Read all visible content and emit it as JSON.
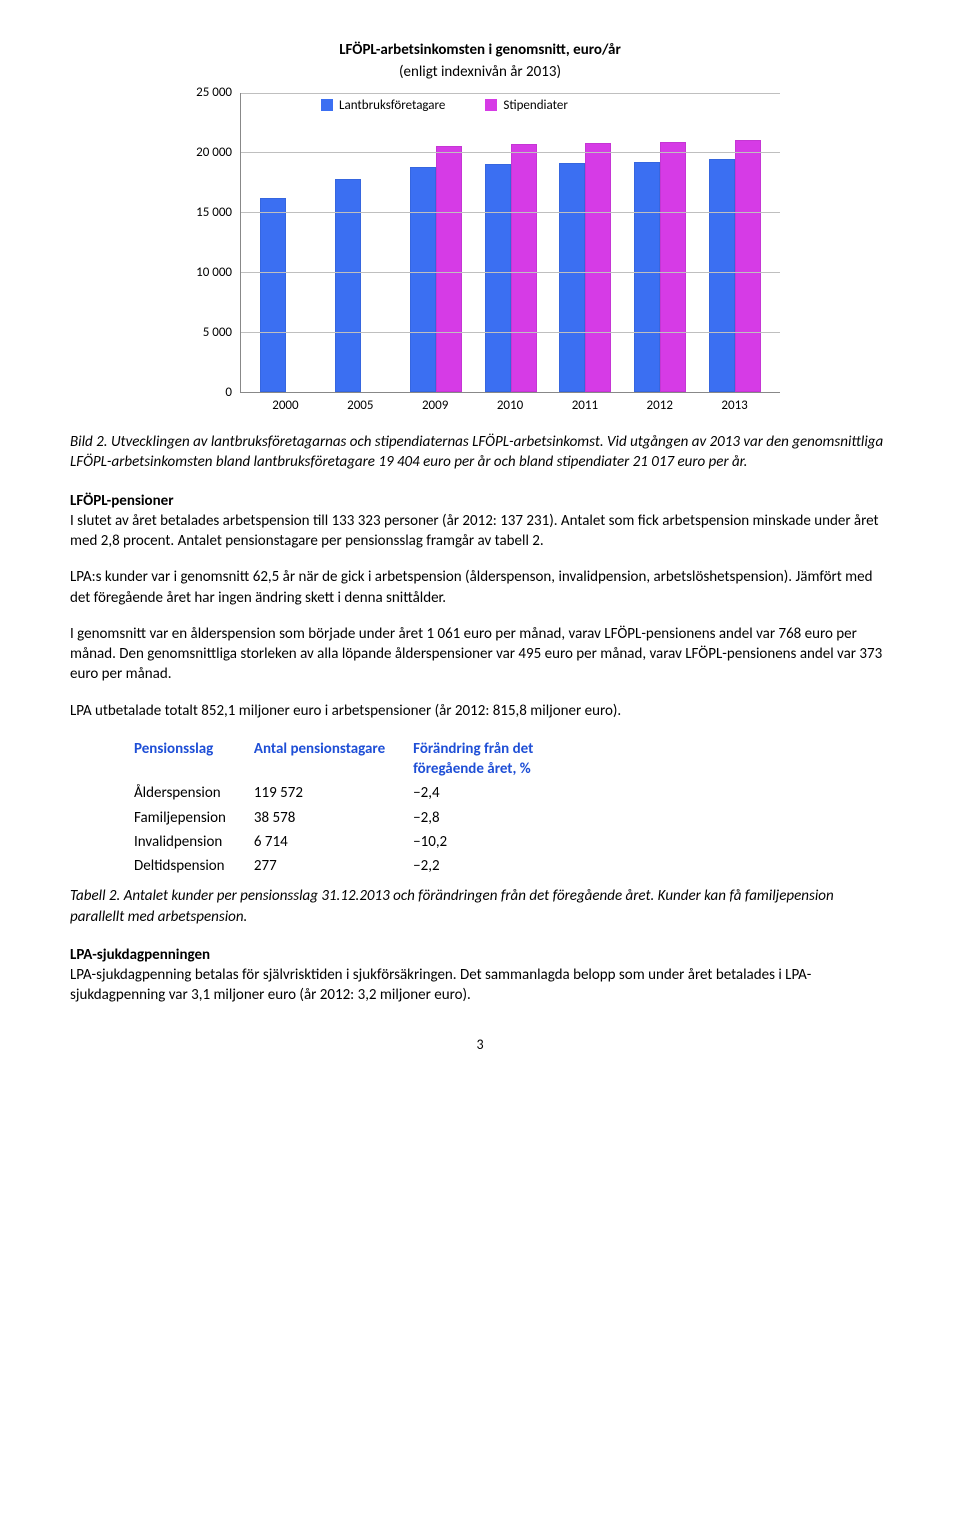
{
  "chart": {
    "title": "LFÖPL-arbetsinkomsten i genomsnitt, euro/år",
    "subtitle": "(enligt indexnivån år 2013)",
    "ymax": 25000,
    "ytick_step": 5000,
    "yticks": [
      "0",
      "5 000",
      "10 000",
      "15 000",
      "20 000",
      "25 000"
    ],
    "categories": [
      "2000",
      "2005",
      "2009",
      "2010",
      "2011",
      "2012",
      "2013"
    ],
    "series": [
      {
        "label": "Lantbruksföretagare",
        "color": "#3b6ff2",
        "values": [
          16200,
          17800,
          18800,
          19000,
          19100,
          19200,
          19404
        ]
      },
      {
        "label": "Stipendiater",
        "color": "#d63be6",
        "values": [
          null,
          null,
          20500,
          20700,
          20800,
          20900,
          21017
        ]
      }
    ],
    "grid_color": "#bfbfbf",
    "axis_color": "#888888",
    "background": "#ffffff"
  },
  "caption1": {
    "lead": "Bild 2.",
    "text1": " Utvecklingen av lantbruksföretagarnas och stipendiaternas LFÖPL-arbetsinkomst. Vid utgången av 2013 var den genomsnittliga LFÖPL-arbetsinkomsten bland lantbruksföretagare 19 404 euro per år och bland stipendiater 21 017 euro per år."
  },
  "sections": {
    "pensioner": {
      "head": "LFÖPL-pensioner",
      "p1": "I slutet av året betalades arbetspension till 133 323 personer (år 2012: 137 231). Antalet som fick arbetspension minskade under året med 2,8 procent. Antalet pensionstagare per pensionsslag framgår av tabell 2.",
      "p2": "LPA:s kunder var i genomsnitt 62,5 år när de gick i arbetspension (ålderspenson, invalidpension, arbetslöshetspension). Jämfört med det föregående året har ingen ändring skett i denna snittålder.",
      "p3": "I genomsnitt var en ålderspension som började under året 1 061 euro per månad, varav LFÖPL-pensionens andel var 768 euro per månad. Den genomsnittliga storleken av alla löpande ålderspensioner var 495 euro per månad, varav LFÖPL-pensionens andel var 373 euro per månad.",
      "p4": "LPA utbetalade totalt 852,1 miljoner euro i arbetspensioner (år 2012: 815,8 miljoner euro)."
    },
    "sjuk": {
      "head": "LPA-sjukdagpenningen",
      "p1": "LPA-sjukdagpenning betalas för självrisktiden i sjukförsäkringen. Det sammanlagda belopp som under året betalades i LPA-sjukdagpenning var 3,1 miljoner euro (år 2012: 3,2 miljoner euro)."
    }
  },
  "table": {
    "headers": {
      "col1": "Pensionsslag",
      "col2": "Antal pensionstagare",
      "col3a": "Förändring från det",
      "col3b": "föregående året, %"
    },
    "rows": [
      {
        "name": "Ålderspension",
        "count": "119 572",
        "change": "−2,4"
      },
      {
        "name": "Familjepension",
        "count": "38 578",
        "change": "−2,8"
      },
      {
        "name": "Invalidpension",
        "count": "6 714",
        "change": "−10,2"
      },
      {
        "name": "Deltidspension",
        "count": "277",
        "change": "−2,2"
      }
    ]
  },
  "caption2": {
    "lead": "Tabell 2.",
    "text": " Antalet kunder per pensionsslag 31.12.2013 och förändringen från det föregående året. Kunder kan få familjepension parallellt med arbetspension."
  },
  "page_number": "3"
}
